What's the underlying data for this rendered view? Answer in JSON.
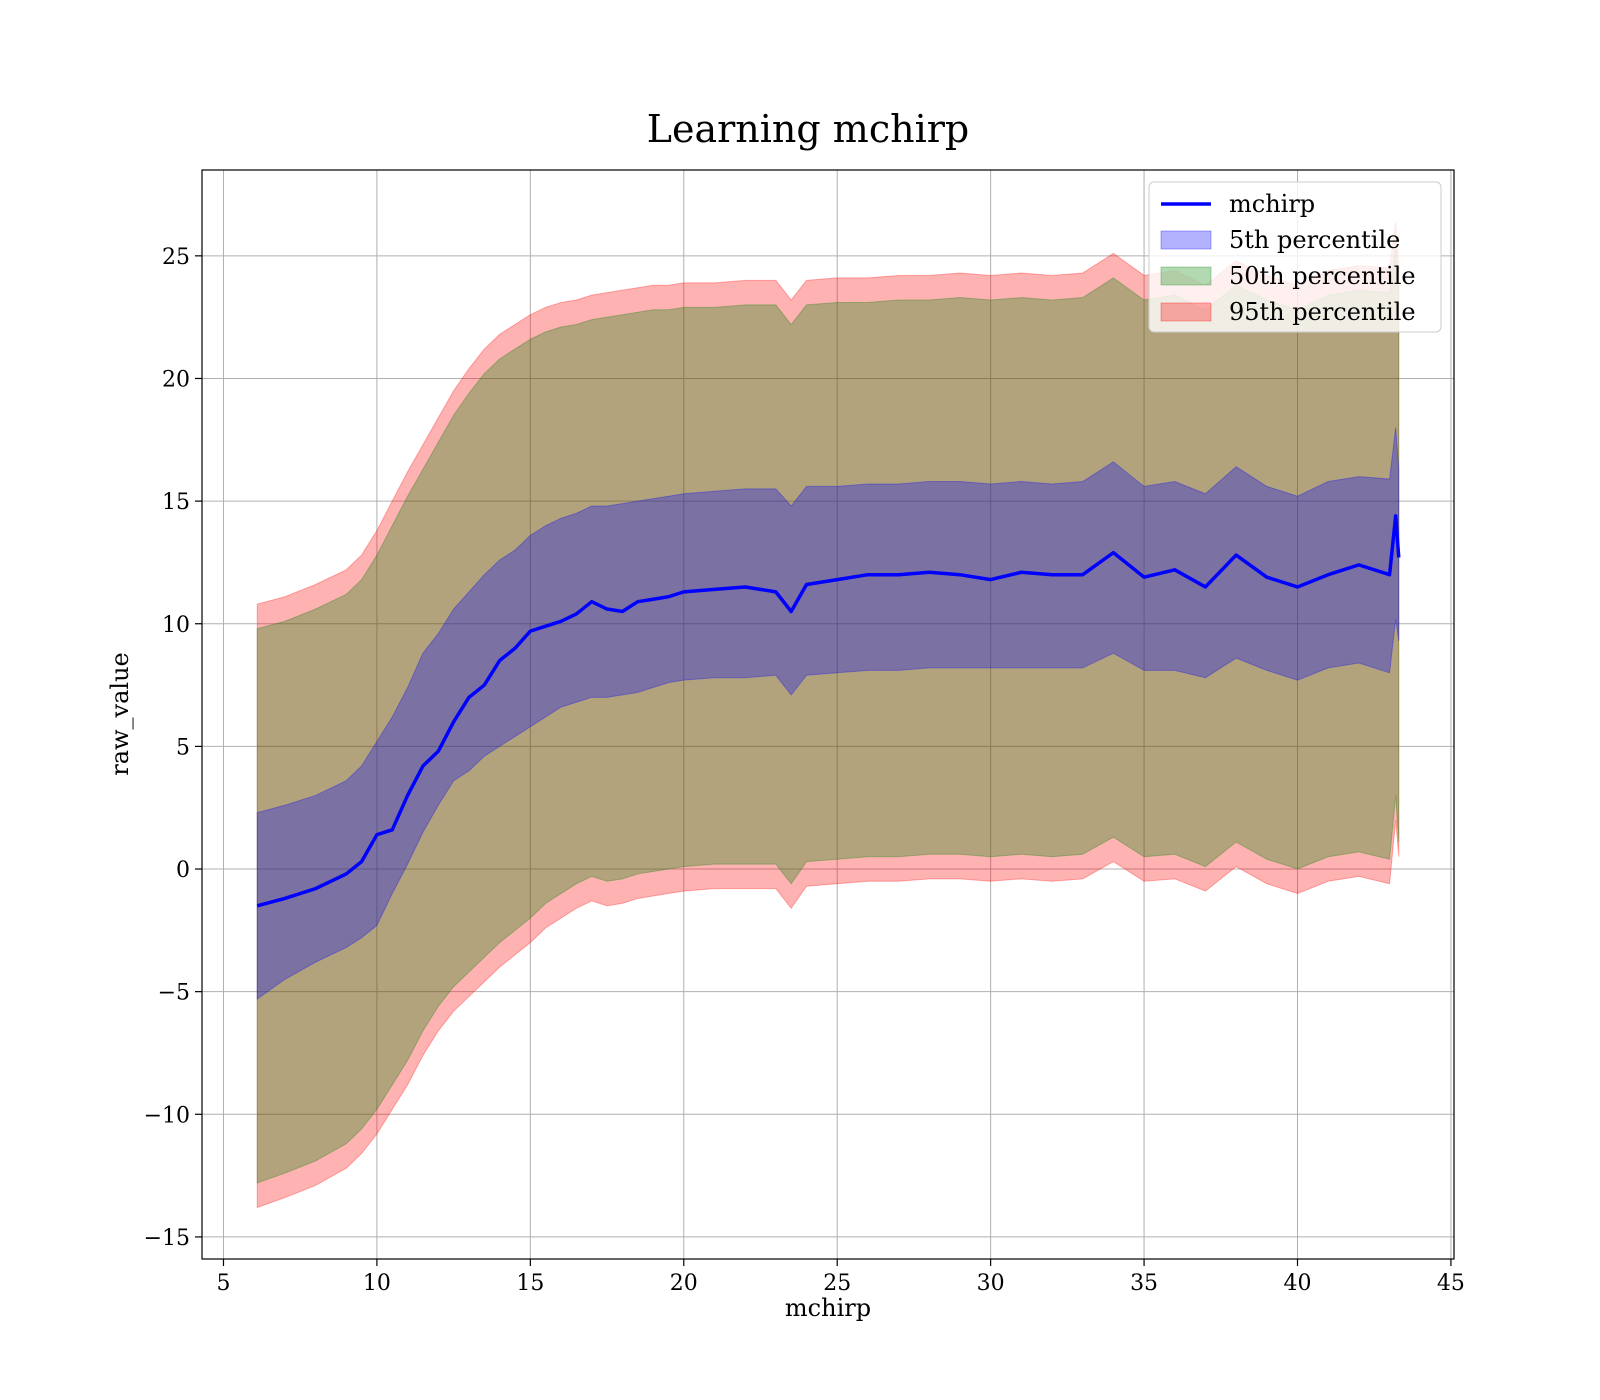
{
  "chart_data": {
    "type": "line",
    "title": "Learning mchirp",
    "xlabel": "mchirp",
    "ylabel": "raw_value",
    "xlim": [
      4.3,
      45.1
    ],
    "ylim": [
      -15.9,
      28.5
    ],
    "xticks": [
      5,
      10,
      15,
      20,
      25,
      30,
      35,
      40,
      45
    ],
    "yticks": [
      -15,
      -10,
      -5,
      0,
      5,
      10,
      15,
      20,
      25
    ],
    "xtick_labels": [
      "5",
      "10",
      "15",
      "20",
      "25",
      "30",
      "35",
      "40",
      "45"
    ],
    "ytick_labels": [
      "−15",
      "−10",
      "−5",
      "0",
      "5",
      "10",
      "15",
      "20",
      "25"
    ],
    "grid": true,
    "legend_position": "top-right",
    "colors": {
      "line": "#0000ff",
      "band_5th": "#0000ff",
      "band_50th": "#008000",
      "band_95th": "#ff0000"
    },
    "x": [
      6.1,
      7,
      8,
      9,
      9.5,
      10,
      10.5,
      11,
      11.5,
      12,
      12.5,
      13,
      13.5,
      14,
      14.5,
      15,
      15.5,
      16,
      16.5,
      17,
      17.5,
      18,
      18.5,
      19,
      19.5,
      20,
      21,
      22,
      23,
      23.5,
      24,
      25,
      26,
      27,
      28,
      29,
      30,
      31,
      32,
      33,
      34,
      35,
      36,
      37,
      38,
      39,
      40,
      41,
      42,
      43,
      43.2,
      43.3
    ],
    "series": [
      {
        "name": "mchirp",
        "kind": "line",
        "values": [
          -1.5,
          -1.2,
          -0.8,
          -0.2,
          0.3,
          1.4,
          1.6,
          3.0,
          4.2,
          4.8,
          6.0,
          7.0,
          7.5,
          8.5,
          9.0,
          9.7,
          9.9,
          10.1,
          10.4,
          10.9,
          10.6,
          10.5,
          10.9,
          11.0,
          11.1,
          11.3,
          11.4,
          11.5,
          11.3,
          10.5,
          11.6,
          11.8,
          12.0,
          12.0,
          12.1,
          12.0,
          11.8,
          12.1,
          12.0,
          12.0,
          12.9,
          11.9,
          12.2,
          11.5,
          12.8,
          11.9,
          11.5,
          12.0,
          12.4,
          12.0,
          14.4,
          12.7
        ]
      },
      {
        "name": "5th percentile",
        "kind": "band",
        "lower": [
          -5.3,
          -4.5,
          -3.8,
          -3.2,
          -2.8,
          -2.3,
          -1.0,
          0.2,
          1.5,
          2.6,
          3.6,
          4.0,
          4.6,
          5.0,
          5.4,
          5.8,
          6.2,
          6.6,
          6.8,
          7.0,
          7.0,
          7.1,
          7.2,
          7.4,
          7.6,
          7.7,
          7.8,
          7.8,
          7.9,
          7.1,
          7.9,
          8.0,
          8.1,
          8.1,
          8.2,
          8.2,
          8.2,
          8.2,
          8.2,
          8.2,
          8.8,
          8.1,
          8.1,
          7.8,
          8.6,
          8.1,
          7.7,
          8.2,
          8.4,
          8.0,
          10.2,
          9.3
        ],
        "upper": [
          2.3,
          2.6,
          3.0,
          3.6,
          4.2,
          5.2,
          6.2,
          7.4,
          8.8,
          9.6,
          10.6,
          11.3,
          12.0,
          12.6,
          13.0,
          13.6,
          14.0,
          14.3,
          14.5,
          14.8,
          14.8,
          14.9,
          15.0,
          15.1,
          15.2,
          15.3,
          15.4,
          15.5,
          15.5,
          14.8,
          15.6,
          15.6,
          15.7,
          15.7,
          15.8,
          15.8,
          15.7,
          15.8,
          15.7,
          15.8,
          16.6,
          15.6,
          15.8,
          15.3,
          16.4,
          15.6,
          15.2,
          15.8,
          16.0,
          15.9,
          18.0,
          16.3
        ]
      },
      {
        "name": "50th percentile",
        "kind": "band",
        "lower": [
          -12.8,
          -12.4,
          -11.9,
          -11.2,
          -10.6,
          -9.8,
          -8.8,
          -7.8,
          -6.6,
          -5.6,
          -4.8,
          -4.2,
          -3.6,
          -3.0,
          -2.5,
          -2.0,
          -1.4,
          -1.0,
          -0.6,
          -0.3,
          -0.5,
          -0.4,
          -0.2,
          -0.1,
          0.0,
          0.1,
          0.2,
          0.2,
          0.2,
          -0.6,
          0.3,
          0.4,
          0.5,
          0.5,
          0.6,
          0.6,
          0.5,
          0.6,
          0.5,
          0.6,
          1.3,
          0.5,
          0.6,
          0.1,
          1.1,
          0.4,
          0.0,
          0.5,
          0.7,
          0.4,
          3.0,
          1.1
        ],
        "upper": [
          9.8,
          10.1,
          10.6,
          11.2,
          11.8,
          12.8,
          14.0,
          15.2,
          16.3,
          17.4,
          18.5,
          19.4,
          20.2,
          20.8,
          21.2,
          21.6,
          21.9,
          22.1,
          22.2,
          22.4,
          22.5,
          22.6,
          22.7,
          22.8,
          22.8,
          22.9,
          22.9,
          23.0,
          23.0,
          22.2,
          23.0,
          23.1,
          23.1,
          23.2,
          23.2,
          23.3,
          23.2,
          23.3,
          23.2,
          23.3,
          24.1,
          23.2,
          23.4,
          22.8,
          23.8,
          23.2,
          22.8,
          23.4,
          23.6,
          23.5,
          25.4,
          23.7
        ]
      },
      {
        "name": "95th percentile",
        "kind": "band",
        "lower": [
          -13.8,
          -13.4,
          -12.9,
          -12.2,
          -11.6,
          -10.8,
          -9.8,
          -8.8,
          -7.6,
          -6.6,
          -5.8,
          -5.2,
          -4.6,
          -4.0,
          -3.5,
          -3.0,
          -2.4,
          -2.0,
          -1.6,
          -1.3,
          -1.5,
          -1.4,
          -1.2,
          -1.1,
          -1.0,
          -0.9,
          -0.8,
          -0.8,
          -0.8,
          -1.6,
          -0.7,
          -0.6,
          -0.5,
          -0.5,
          -0.4,
          -0.4,
          -0.5,
          -0.4,
          -0.5,
          -0.4,
          0.3,
          -0.5,
          -0.4,
          -0.9,
          0.1,
          -0.6,
          -1.0,
          -0.5,
          -0.3,
          -0.6,
          2.0,
          0.5
        ],
        "upper": [
          10.8,
          11.1,
          11.6,
          12.2,
          12.8,
          13.8,
          15.0,
          16.2,
          17.3,
          18.4,
          19.5,
          20.4,
          21.2,
          21.8,
          22.2,
          22.6,
          22.9,
          23.1,
          23.2,
          23.4,
          23.5,
          23.6,
          23.7,
          23.8,
          23.8,
          23.9,
          23.9,
          24.0,
          24.0,
          23.2,
          24.0,
          24.1,
          24.1,
          24.2,
          24.2,
          24.3,
          24.2,
          24.3,
          24.2,
          24.3,
          25.1,
          24.2,
          24.4,
          23.8,
          24.8,
          24.2,
          23.8,
          24.4,
          24.6,
          24.5,
          26.4,
          24.7
        ]
      }
    ]
  }
}
